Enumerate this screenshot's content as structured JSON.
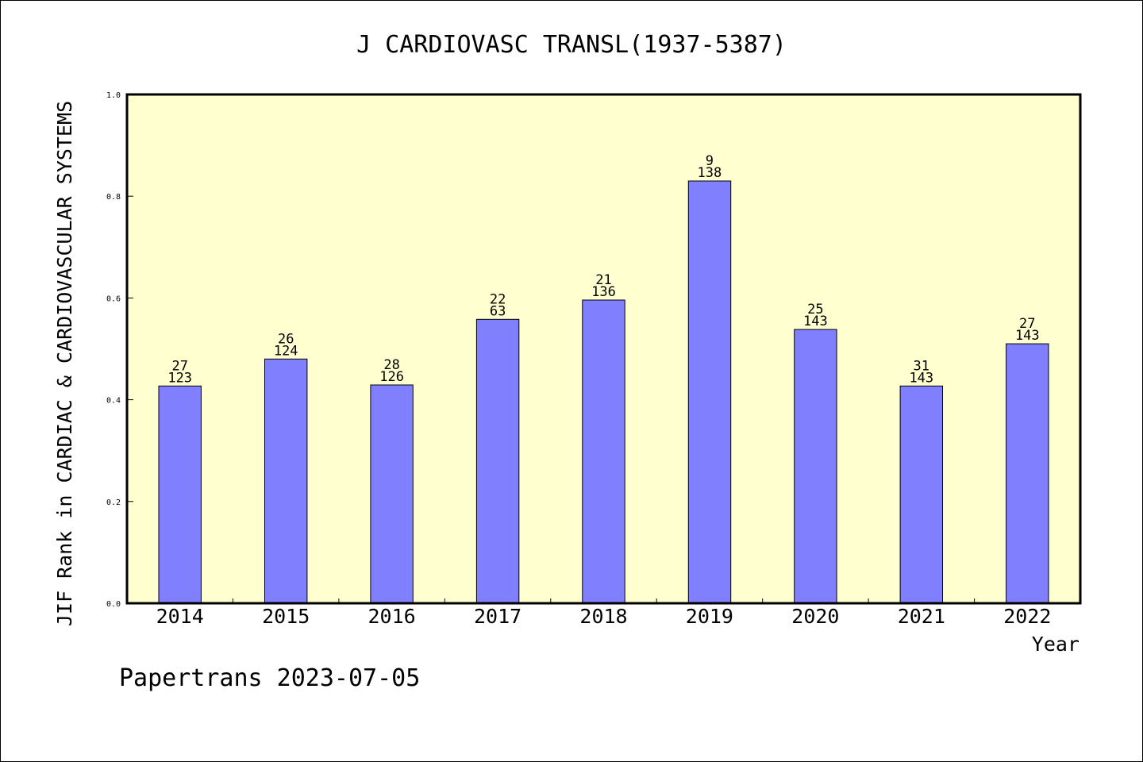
{
  "chart_data": {
    "type": "bar",
    "title": "J CARDIOVASC TRANSL(1937-5387)",
    "xlabel": "Year",
    "ylabel": "JIF Rank in CARDIAC & CARDIOVASCULAR SYSTEMS",
    "categories": [
      "2014",
      "2015",
      "2016",
      "2017",
      "2018",
      "2019",
      "2020",
      "2021",
      "2022"
    ],
    "values": [
      0.427,
      0.48,
      0.429,
      0.558,
      0.596,
      0.83,
      0.538,
      0.427,
      0.51
    ],
    "ranks": [
      "27",
      "26",
      "28",
      "22",
      "21",
      "9",
      "25",
      "31",
      "27"
    ],
    "totals": [
      "123",
      "124",
      "126",
      "63",
      "136",
      "138",
      "143",
      "143",
      "143"
    ],
    "ylim": [
      0,
      1.0
    ],
    "yticks": [
      "0.0",
      "0.2",
      "0.4",
      "0.6",
      "0.8",
      "1.0"
    ],
    "grid": false,
    "colors": {
      "plot_background": "#FFFFD0",
      "bar_fill": "#8080FF",
      "bar_stroke": "#000000"
    }
  },
  "footer": {
    "credit": "Papertrans 2023-07-05"
  }
}
